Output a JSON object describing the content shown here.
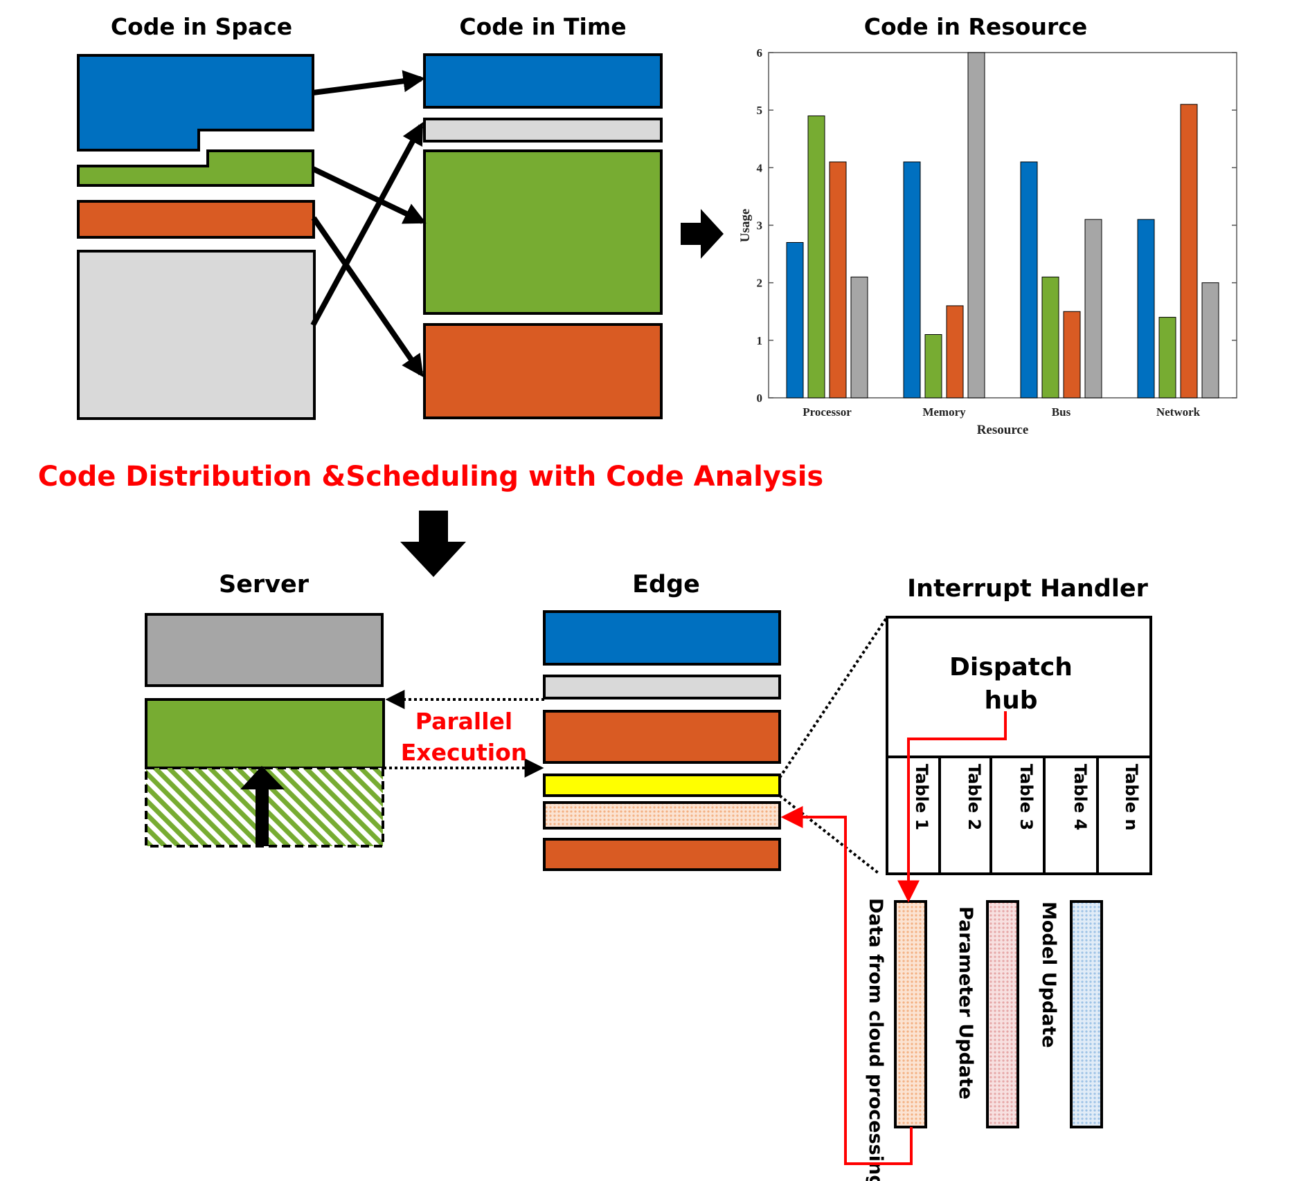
{
  "headings": {
    "code_in_space": "Code in Space",
    "code_in_time": "Code in Time",
    "code_in_resource": "Code in Resource",
    "main_title": "Code Distribution &Scheduling with Code Analysis",
    "server": "Server",
    "edge": "Edge",
    "interrupt_handler": "Interrupt Handler"
  },
  "labels": {
    "parallel_line1": "Parallel",
    "parallel_line2": "Execution",
    "dispatch_line1": "Dispatch",
    "dispatch_line2": "hub",
    "tables": [
      "Table 1",
      "Table 2",
      "Table 3",
      "Table 4",
      "Table n"
    ],
    "data_from_cloud": "Data from cloud processing",
    "parameter_update": "Parameter Update",
    "model_update": "Model Update"
  },
  "colors": {
    "blue": "#0070c0",
    "green": "#77ac32",
    "orange": "#d95b23",
    "light_gray": "#d9d9d9",
    "gray": "#a6a6a6",
    "yellow": "#ffff00",
    "red": "#ff0000",
    "peach": "#f4b183",
    "pink": "#e6a7a7",
    "light_blue": "#9dc3e6"
  },
  "chart_data": {
    "type": "bar",
    "title": "Code in Resource",
    "xlabel": "Resource",
    "ylabel": "Usage",
    "categories": [
      "Processor",
      "Memory",
      "Bus",
      "Network"
    ],
    "ylim": [
      0,
      6
    ],
    "yticks": [
      "0",
      "1",
      "2",
      "3",
      "4",
      "5",
      "6"
    ],
    "grid": false,
    "legend": "none",
    "series": [
      {
        "color": "#0070c0",
        "values": [
          2.7,
          4.1,
          4.1,
          3.1
        ]
      },
      {
        "color": "#77ac32",
        "values": [
          4.9,
          1.1,
          2.1,
          1.4
        ]
      },
      {
        "color": "#d95b23",
        "values": [
          4.1,
          1.6,
          1.5,
          5.1
        ]
      },
      {
        "color": "#a6a6a6",
        "values": [
          2.1,
          6.0,
          3.1,
          2.0
        ]
      }
    ]
  }
}
